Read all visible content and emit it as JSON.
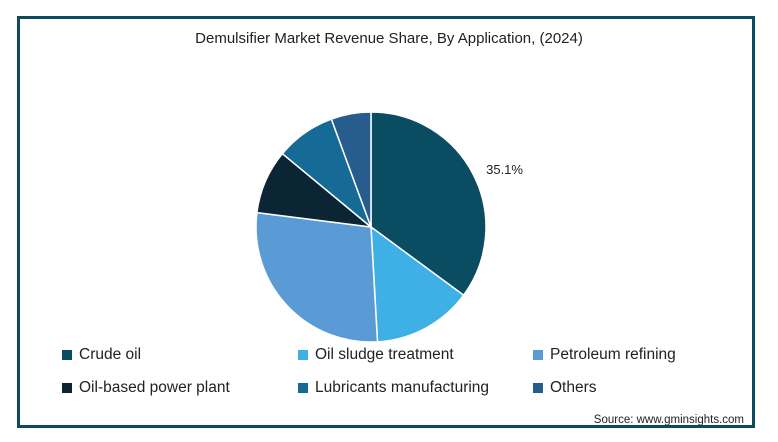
{
  "chart_data": {
    "type": "pie",
    "title": "Demulsifier Market Revenue Share, By Application, (2024)",
    "categories": [
      "Crude oil",
      "Oil sludge treatment",
      "Petroleum refining",
      "Oil-based power plant",
      "Lubricants manufacturing",
      "Others"
    ],
    "values": [
      35.1,
      14.0,
      27.9,
      9.0,
      8.4,
      5.6
    ],
    "colors": [
      "#0a4c61",
      "#3fb0e6",
      "#5b9bd5",
      "#0c2535",
      "#156a96",
      "#275d8d"
    ],
    "data_labels": [
      "35.1%",
      "",
      "",
      "",
      "",
      ""
    ],
    "legend_position": "bottom"
  },
  "source": "Source: www.gminsights.com"
}
